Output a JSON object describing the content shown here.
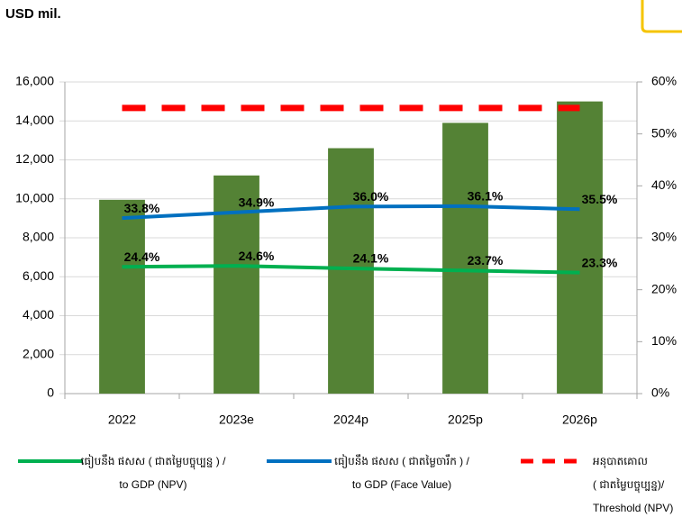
{
  "chart_data": {
    "type": "bar",
    "title": "USD mil.",
    "categories": [
      "2022",
      "2023e",
      "2024p",
      "2025p",
      "2026p"
    ],
    "values": [
      9950,
      11200,
      12600,
      13900,
      15000
    ],
    "color": "#548235",
    "ylim": [
      0,
      16000
    ],
    "yticks": [
      0,
      {
        "value": 2000,
        "label": "2,000"
      },
      {
        "value": 4000,
        "label": "4,000"
      },
      {
        "value": 6000,
        "label": "6,000"
      },
      {
        "value": 8000,
        "label": "8,000"
      },
      {
        "value": 10000,
        "label": "10,000"
      },
      {
        "value": 12000,
        "label": "12,000"
      },
      {
        "value": 14000,
        "label": "14,000"
      },
      {
        "value": 16000,
        "label": "16,000"
      }
    ],
    "y2lim": [
      0,
      60
    ],
    "y2ticks": [
      {
        "value": 0,
        "label": "0%"
      },
      {
        "value": 10,
        "label": "10%"
      },
      {
        "value": 20,
        "label": "20%"
      },
      {
        "value": 30,
        "label": "30%"
      },
      {
        "value": 40,
        "label": "40%"
      },
      {
        "value": 50,
        "label": "50%"
      },
      {
        "value": 60,
        "label": "60%"
      }
    ],
    "grid": true,
    "series": [
      {
        "name": "ធៀបនឹង ផសស ( ជាតម្លៃបច្ចុប្បន្ន ) /\nto GDP (NPV)",
        "color": "#00b050",
        "axis": "y2",
        "dash": false,
        "values": [
          24.4,
          24.6,
          24.1,
          23.7,
          23.3
        ],
        "value_labels": [
          "24.4%",
          "24.6%",
          "24.1%",
          "23.7%",
          "23.3%"
        ]
      },
      {
        "name": "ធៀបនឹង ផសស ( ជាតម្លៃចារឹក ) /\nto GDP (Face Value)",
        "color": "#0070c0",
        "axis": "y2",
        "dash": false,
        "values": [
          33.8,
          34.9,
          36.0,
          36.1,
          35.5
        ],
        "value_labels": [
          "33.8%",
          "34.9%",
          "36.0%",
          "36.1%",
          "35.5%"
        ]
      },
      {
        "name": "អនុបាតគោល\n( ជាតម្លៃបច្ចុប្បន្ន)/\nThreshold (NPV)",
        "color": "#ff0000",
        "axis": "y2",
        "dash": true,
        "values": [
          55,
          55,
          55,
          55,
          55
        ]
      }
    ]
  }
}
